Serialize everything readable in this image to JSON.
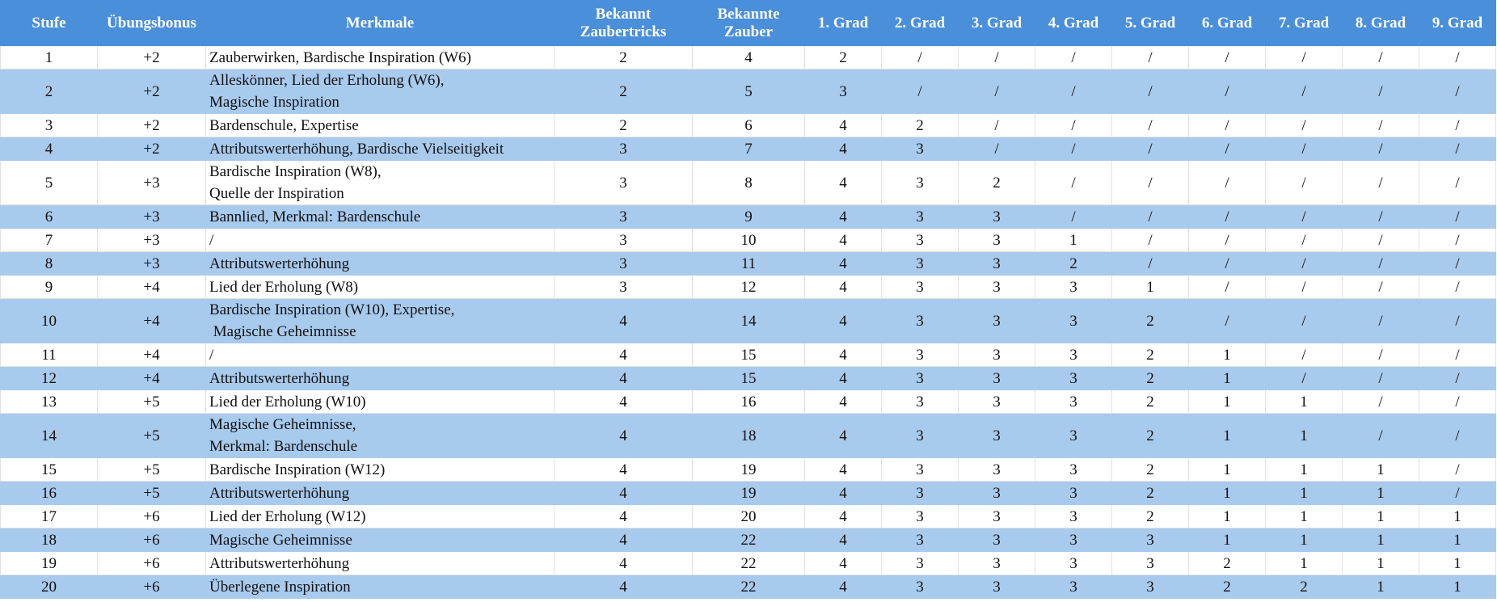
{
  "table": {
    "header": [
      "Stufe",
      "Übungsbonus",
      "Merkmale",
      "Bekannt\nZaubertricks",
      "Bekannte\nZauber",
      "1. Grad",
      "2. Grad",
      "3. Grad",
      "4. Grad",
      "5. Grad",
      "6. Grad",
      "7. Grad",
      "8. Grad",
      "9. Grad"
    ],
    "rows": [
      [
        "1",
        "+2",
        "Zauberwirken, Bardische Inspiration (W6)",
        "2",
        "4",
        "2",
        "/",
        "/",
        "/",
        "/",
        "/",
        "/",
        "/",
        "/"
      ],
      [
        "2",
        "+2",
        "Alleskönner, Lied der Erholung (W6),\nMagische Inspiration",
        "2",
        "5",
        "3",
        "/",
        "/",
        "/",
        "/",
        "/",
        "/",
        "/",
        "/"
      ],
      [
        "3",
        "+2",
        "Bardenschule, Expertise",
        "2",
        "6",
        "4",
        "2",
        "/",
        "/",
        "/",
        "/",
        "/",
        "/",
        "/"
      ],
      [
        "4",
        "+2",
        "Attributswerterhöhung, Bardische Vielseitigkeit",
        "3",
        "7",
        "4",
        "3",
        "/",
        "/",
        "/",
        "/",
        "/",
        "/",
        "/"
      ],
      [
        "5",
        "+3",
        "Bardische Inspiration (W8),\nQuelle der Inspiration",
        "3",
        "8",
        "4",
        "3",
        "2",
        "/",
        "/",
        "/",
        "/",
        "/",
        "/"
      ],
      [
        "6",
        "+3",
        "Bannlied, Merkmal: Bardenschule",
        "3",
        "9",
        "4",
        "3",
        "3",
        "/",
        "/",
        "/",
        "/",
        "/",
        "/"
      ],
      [
        "7",
        "+3",
        "/",
        "3",
        "10",
        "4",
        "3",
        "3",
        "1",
        "/",
        "/",
        "/",
        "/",
        "/"
      ],
      [
        "8",
        "+3",
        "Attributswerterhöhung",
        "3",
        "11",
        "4",
        "3",
        "3",
        "2",
        "/",
        "/",
        "/",
        "/",
        "/"
      ],
      [
        "9",
        "+4",
        "Lied der Erholung (W8)",
        "3",
        "12",
        "4",
        "3",
        "3",
        "3",
        "1",
        "/",
        "/",
        "/",
        "/"
      ],
      [
        "10",
        "+4",
        "Bardische Inspiration (W10), Expertise,\n Magische Geheimnisse",
        "4",
        "14",
        "4",
        "3",
        "3",
        "3",
        "2",
        "/",
        "/",
        "/",
        "/"
      ],
      [
        "11",
        "+4",
        "/",
        "4",
        "15",
        "4",
        "3",
        "3",
        "3",
        "2",
        "1",
        "/",
        "/",
        "/"
      ],
      [
        "12",
        "+4",
        "Attributswerterhöhung",
        "4",
        "15",
        "4",
        "3",
        "3",
        "3",
        "2",
        "1",
        "/",
        "/",
        "/"
      ],
      [
        "13",
        "+5",
        "Lied der Erholung (W10)",
        "4",
        "16",
        "4",
        "3",
        "3",
        "3",
        "2",
        "1",
        "1",
        "/",
        "/"
      ],
      [
        "14",
        "+5",
        "Magische Geheimnisse,\nMerkmal: Bardenschule",
        "4",
        "18",
        "4",
        "3",
        "3",
        "3",
        "2",
        "1",
        "1",
        "/",
        "/"
      ],
      [
        "15",
        "+5",
        "Bardische Inspiration (W12)",
        "4",
        "19",
        "4",
        "3",
        "3",
        "3",
        "2",
        "1",
        "1",
        "1",
        "/"
      ],
      [
        "16",
        "+5",
        "Attributswerterhöhung",
        "4",
        "19",
        "4",
        "3",
        "3",
        "3",
        "2",
        "1",
        "1",
        "1",
        "/"
      ],
      [
        "17",
        "+6",
        "Lied der Erholung (W12)",
        "4",
        "20",
        "4",
        "3",
        "3",
        "3",
        "2",
        "1",
        "1",
        "1",
        "1"
      ],
      [
        "18",
        "+6",
        "Magische Geheimnisse",
        "4",
        "22",
        "4",
        "3",
        "3",
        "3",
        "3",
        "1",
        "1",
        "1",
        "1"
      ],
      [
        "19",
        "+6",
        "Attributswerterhöhung",
        "4",
        "22",
        "4",
        "3",
        "3",
        "3",
        "3",
        "2",
        "1",
        "1",
        "1"
      ],
      [
        "20",
        "+6",
        "Überlegene Inspiration",
        "4",
        "22",
        "4",
        "3",
        "3",
        "3",
        "3",
        "2",
        "2",
        "1",
        "1"
      ]
    ]
  }
}
